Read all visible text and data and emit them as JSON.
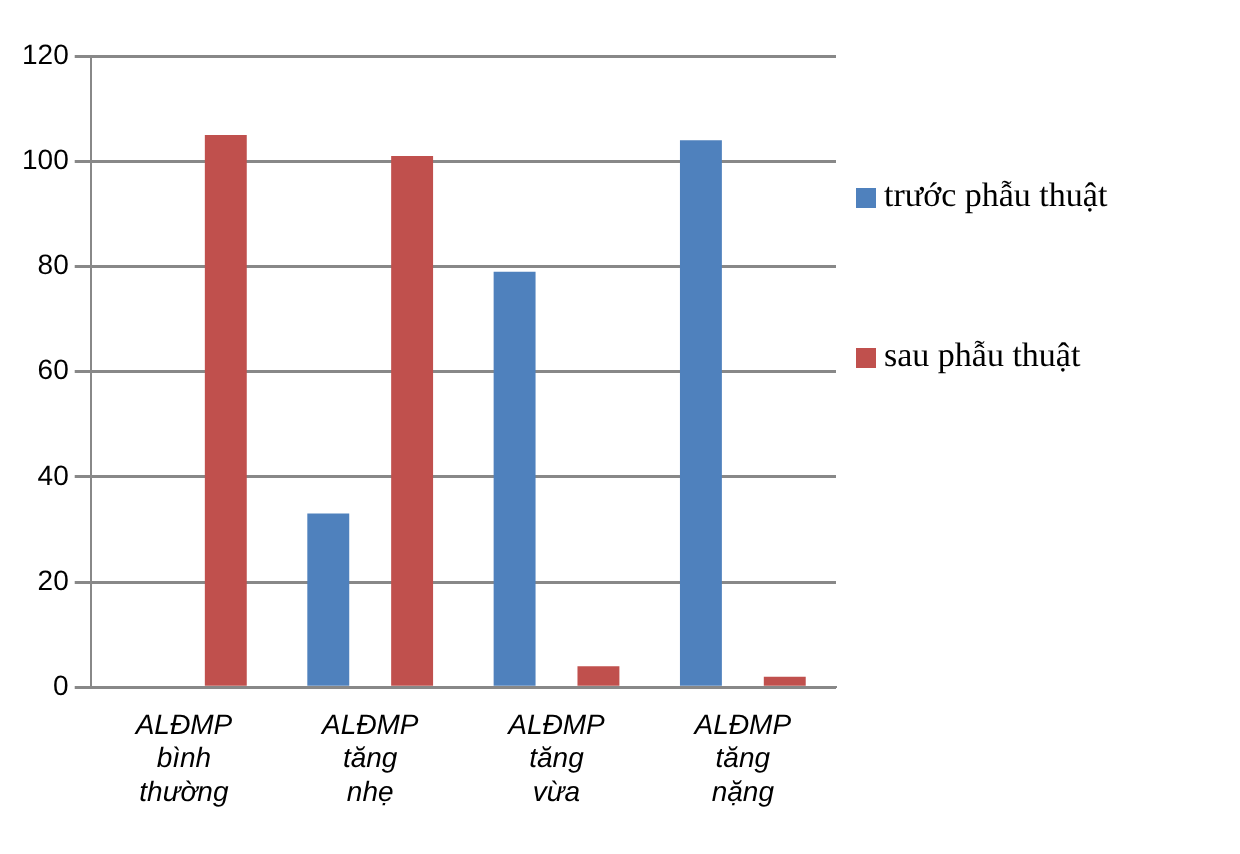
{
  "chart_data": {
    "type": "bar",
    "categories": [
      "ALĐMP bình thường",
      "ALĐMP tăng nhẹ",
      "ALĐMP tăng vừa",
      "ALĐMP tăng nặng"
    ],
    "series": [
      {
        "name": "trước phẫu thuật",
        "color": "#4f81bd",
        "values": [
          0,
          33,
          79,
          104
        ]
      },
      {
        "name": "sau phẫu thuật",
        "color": "#c0504d",
        "values": [
          105,
          101,
          4,
          2
        ]
      }
    ],
    "ylim": [
      0,
      120
    ],
    "yticks": [
      0,
      20,
      40,
      60,
      80,
      100,
      120
    ],
    "grid": "y",
    "legend": "right"
  }
}
